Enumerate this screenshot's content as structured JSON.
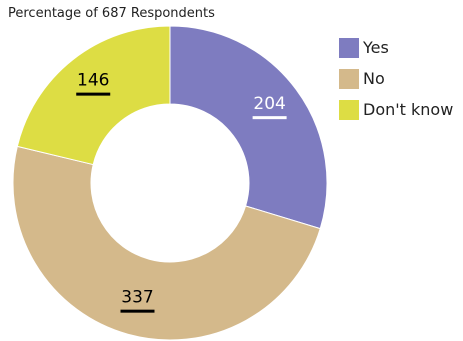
{
  "chart_data": {
    "type": "pie",
    "variant": "donut",
    "subtitle": "Percentage of 687 Respondents",
    "categories": [
      "Yes",
      "No",
      "Don't know"
    ],
    "values": [
      204,
      337,
      146
    ],
    "colors": [
      "#7e7cc0",
      "#d4b98b",
      "#dddd44"
    ],
    "data_label_colors": [
      "#ffffff",
      "#000000",
      "#000000"
    ],
    "legend_position": "right",
    "legend": [
      {
        "label": "Yes",
        "color": "#7e7cc0"
      },
      {
        "label": "No",
        "color": "#d4b98b"
      },
      {
        "label": "Don't know",
        "color": "#dddd44"
      }
    ]
  }
}
